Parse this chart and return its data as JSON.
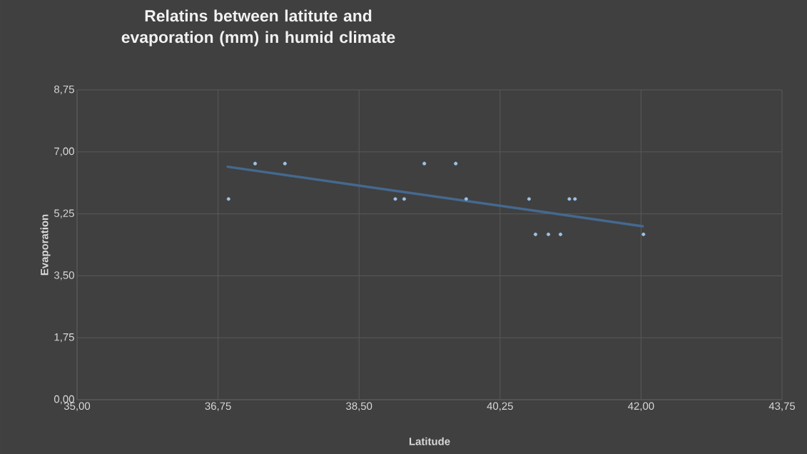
{
  "chart_data": {
    "type": "scatter",
    "title": "Relatins between latitute and evaporation (mm) in humid climate",
    "xlabel": "Latitude",
    "ylabel": "Evaporation",
    "series": [
      {
        "type": "scatter",
        "color": "#9dc3e6",
        "marker": "circle",
        "x": [
          36.88,
          37.21,
          37.58,
          38.95,
          39.06,
          39.31,
          39.7,
          39.83,
          40.61,
          40.69,
          40.85,
          41.0,
          41.11,
          41.18,
          42.03
        ],
        "values": [
          5.67,
          6.67,
          6.67,
          5.67,
          5.67,
          6.67,
          6.67,
          5.67,
          5.67,
          4.67,
          4.67,
          4.67,
          5.67,
          5.67,
          4.67
        ]
      },
      {
        "type": "line",
        "color": "#44698f",
        "marker": "none",
        "x": [
          36.87,
          42.02
        ],
        "values": [
          6.58,
          4.9
        ]
      }
    ],
    "xlim": [
      35,
      43.75
    ],
    "ylim": [
      0,
      8.75
    ],
    "xticks": [
      {
        "value": 35,
        "label": "35,00"
      },
      {
        "value": 36.75,
        "label": "36,75"
      },
      {
        "value": 38.5,
        "label": "38,50"
      },
      {
        "value": 40.25,
        "label": "40,25"
      },
      {
        "value": 42,
        "label": "42,00"
      },
      {
        "value": 43.75,
        "label": "43,75"
      }
    ],
    "yticks": [
      {
        "value": 0,
        "label": "0,00"
      },
      {
        "value": 1.75,
        "label": "1,75"
      },
      {
        "value": 3.5,
        "label": "3,50"
      },
      {
        "value": 5.25,
        "label": "5,25"
      },
      {
        "value": 7,
        "label": "7,00"
      },
      {
        "value": 8.75,
        "label": "8,75"
      }
    ],
    "grid": true
  }
}
